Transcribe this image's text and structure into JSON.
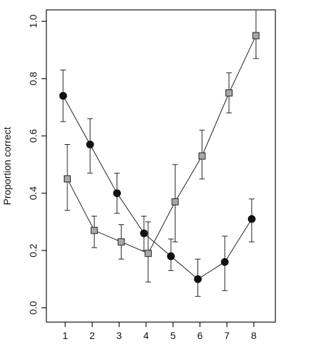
{
  "chart_data": {
    "type": "line",
    "title": "",
    "xlabel": "",
    "ylabel": "Proportion correct",
    "x": [
      1,
      2,
      3,
      4,
      5,
      6,
      7,
      8
    ],
    "xlim": [
      0.3,
      8.8
    ],
    "ylim": [
      -0.05,
      1.04
    ],
    "xticks": [
      "1",
      "2",
      "3",
      "4",
      "5",
      "6",
      "7",
      "8"
    ],
    "yticks": [
      "0.0",
      "0.2",
      "0.4",
      "0.6",
      "0.8",
      "1.0"
    ],
    "grid": false,
    "legend": "none",
    "series": [
      {
        "marker": "filled-circle",
        "color": "#111111",
        "values": [
          0.74,
          0.57,
          0.4,
          0.26,
          0.18,
          0.1,
          0.16,
          0.31
        ],
        "err_low": [
          0.65,
          0.47,
          0.33,
          0.2,
          0.13,
          0.04,
          0.06,
          0.23
        ],
        "err_high": [
          0.83,
          0.66,
          0.47,
          0.32,
          0.24,
          0.17,
          0.25,
          0.38
        ]
      },
      {
        "marker": "gray-square",
        "color": "#a8a8a8",
        "values": [
          0.45,
          0.27,
          0.23,
          0.19,
          0.37,
          0.53,
          0.75,
          0.95
        ],
        "err_low": [
          0.34,
          0.21,
          0.17,
          0.09,
          0.23,
          0.45,
          0.68,
          0.87
        ],
        "err_high": [
          0.57,
          0.32,
          0.29,
          0.3,
          0.5,
          0.62,
          0.82,
          1.04
        ]
      }
    ]
  }
}
